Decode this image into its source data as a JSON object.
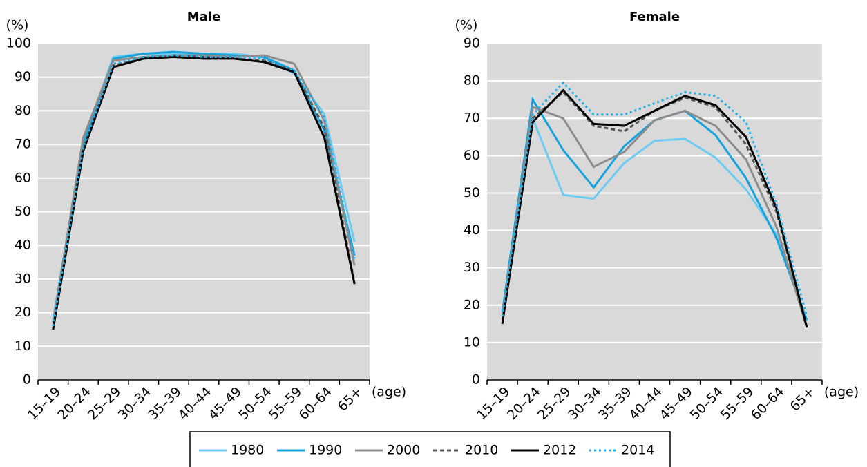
{
  "chart_data": [
    {
      "type": "line",
      "title": "Male",
      "y_label": "(%)",
      "x_label": "(age)",
      "categories": [
        "15–19",
        "20–24",
        "25–29",
        "30–34",
        "35–39",
        "40–44",
        "45–49",
        "50–54",
        "55–59",
        "60–64",
        "65+"
      ],
      "ylim": [
        0,
        100
      ],
      "yticks": [
        0,
        10,
        20,
        30,
        40,
        50,
        60,
        70,
        80,
        90,
        100
      ],
      "grid": true,
      "series": [
        {
          "name": "1980",
          "color": "#6dcbf1",
          "style": "solid",
          "values": [
            18,
            71,
            96,
            97,
            97,
            97,
            97,
            96,
            91,
            79,
            41
          ]
        },
        {
          "name": "1990",
          "color": "#16a2dc",
          "style": "solid",
          "values": [
            17,
            70,
            95.5,
            97,
            97.5,
            97,
            96.5,
            96,
            92,
            74,
            37
          ]
        },
        {
          "name": "2000",
          "color": "#8c8c8c",
          "style": "solid",
          "values": [
            17,
            72,
            95,
            96,
            96.5,
            96.5,
            96,
            96.5,
            94,
            77,
            34
          ]
        },
        {
          "name": "2010",
          "color": "#555555",
          "style": "dashed",
          "values": [
            15,
            69,
            93.5,
            95.5,
            96.5,
            96,
            95.5,
            95,
            92,
            75,
            29
          ]
        },
        {
          "name": "2012",
          "color": "#000000",
          "style": "solid",
          "values": [
            15,
            68,
            93,
            95.5,
            96,
            95.5,
            95.5,
            94.5,
            91.5,
            72,
            28.5
          ]
        },
        {
          "name": "2014",
          "color": "#22aee8",
          "style": "dotted",
          "values": [
            16,
            69,
            94,
            96,
            96.5,
            96,
            96,
            95.5,
            92,
            78,
            36
          ]
        }
      ]
    },
    {
      "type": "line",
      "title": "Female",
      "y_label": "(%)",
      "x_label": "(age)",
      "categories": [
        "15–19",
        "20–24",
        "25–29",
        "30–34",
        "35–39",
        "40–44",
        "45–49",
        "50–54",
        "55–59",
        "60–64",
        "65+"
      ],
      "ylim": [
        0,
        90
      ],
      "yticks": [
        0,
        10,
        20,
        30,
        40,
        50,
        60,
        70,
        80,
        90
      ],
      "grid": true,
      "series": [
        {
          "name": "1980",
          "color": "#6dcbf1",
          "style": "solid",
          "values": [
            18,
            70,
            49.5,
            48.5,
            58,
            64,
            64.5,
            59.5,
            51,
            39,
            16
          ]
        },
        {
          "name": "1990",
          "color": "#16a2dc",
          "style": "solid",
          "values": [
            18,
            75,
            61.5,
            51.5,
            62.5,
            69.5,
            72,
            65.5,
            54,
            38,
            16
          ]
        },
        {
          "name": "2000",
          "color": "#8c8c8c",
          "style": "solid",
          "values": [
            17,
            73,
            70,
            57,
            61,
            69.5,
            72,
            68,
            59,
            41,
            14
          ]
        },
        {
          "name": "2010",
          "color": "#555555",
          "style": "dashed",
          "values": [
            15,
            70,
            77,
            68,
            66.5,
            72,
            75.5,
            73,
            63,
            45,
            14
          ]
        },
        {
          "name": "2012",
          "color": "#000000",
          "style": "solid",
          "values": [
            15,
            69,
            77.5,
            68.5,
            68,
            72,
            76,
            73.5,
            65,
            46,
            14
          ]
        },
        {
          "name": "2014",
          "color": "#22aee8",
          "style": "dotted",
          "values": [
            17,
            71,
            79.5,
            71,
            71,
            74,
            77,
            76,
            69,
            47,
            17
          ]
        }
      ]
    }
  ]
}
